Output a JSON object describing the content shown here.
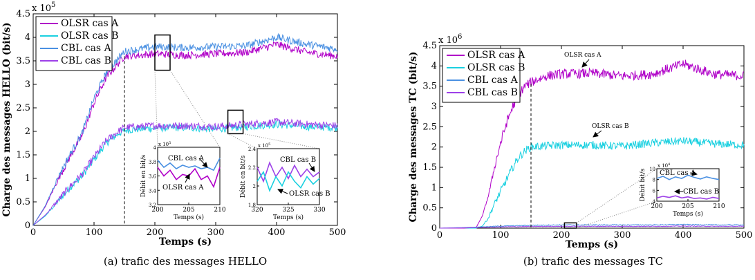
{
  "chart_data": [
    {
      "type": "line",
      "id": "a",
      "caption": "(a) trafic des messages HELLO",
      "xlabel": "Temps (s)",
      "ylabel": "Charge des messages HELLO (bit/s)",
      "multiplier": "x 10",
      "multiplier_exp": "5",
      "xlim": [
        0,
        500
      ],
      "ylim": [
        0,
        4.5
      ],
      "xticks": [
        "0",
        "100",
        "200",
        "300",
        "400",
        "500"
      ],
      "yticks": [
        "0",
        "0.5",
        "1",
        "1.5",
        "2",
        "2.5",
        "3",
        "3.5",
        "4",
        "4.5"
      ],
      "vline_x": 150,
      "legend_position": "top-left",
      "series": [
        {
          "name": "OLSR cas A",
          "color": "#b000c8",
          "x": [
            0,
            20,
            40,
            60,
            80,
            100,
            120,
            140,
            150,
            175,
            200,
            250,
            300,
            350,
            400,
            450,
            500
          ],
          "values": [
            0,
            0.4,
            0.95,
            1.45,
            1.9,
            2.6,
            3.15,
            3.45,
            3.6,
            3.62,
            3.65,
            3.62,
            3.65,
            3.68,
            3.85,
            3.68,
            3.6
          ]
        },
        {
          "name": "OLSR cas B",
          "color": "#1ad0e0",
          "x": [
            0,
            20,
            40,
            60,
            80,
            100,
            120,
            140,
            150,
            175,
            200,
            250,
            300,
            350,
            400,
            450,
            500
          ],
          "values": [
            0,
            0.2,
            0.5,
            0.8,
            1.05,
            1.4,
            1.75,
            1.95,
            2.02,
            2.05,
            2.07,
            2.08,
            2.05,
            2.1,
            2.15,
            2.1,
            2.08
          ]
        },
        {
          "name": "CBL cas A",
          "color": "#4a90e2",
          "x": [
            0,
            20,
            40,
            60,
            80,
            100,
            120,
            140,
            150,
            175,
            200,
            250,
            300,
            350,
            400,
            450,
            500
          ],
          "values": [
            0,
            0.42,
            1.0,
            1.5,
            1.95,
            2.7,
            3.25,
            3.55,
            3.7,
            3.75,
            3.8,
            3.78,
            3.8,
            3.82,
            4.0,
            3.85,
            3.75
          ]
        },
        {
          "name": "CBL cas B",
          "color": "#9d40e8",
          "x": [
            0,
            20,
            40,
            60,
            80,
            100,
            120,
            140,
            150,
            175,
            200,
            250,
            300,
            350,
            400,
            450,
            500
          ],
          "values": [
            0,
            0.22,
            0.52,
            0.82,
            1.08,
            1.45,
            1.8,
            2.0,
            2.08,
            2.1,
            2.12,
            2.12,
            2.1,
            2.15,
            2.2,
            2.15,
            2.12
          ]
        }
      ],
      "inset1": {
        "ylabel": "Débit en bit/s",
        "xlabel": "Temps (s)",
        "multiplier": "x 10",
        "multiplier_exp": "5",
        "xlim": [
          200,
          210
        ],
        "ylim": [
          3.2,
          4.0
        ],
        "xticks": [
          "200",
          "205",
          "210"
        ],
        "yticks": [
          "3.2",
          "3.4",
          "3.6",
          "3.8",
          "4"
        ],
        "label_cbl": "CBL cas A",
        "label_olsr": "OLSR cas A",
        "x": [
          200,
          201,
          202,
          203,
          204,
          205,
          206,
          207,
          208,
          209,
          210
        ],
        "olsr": [
          3.72,
          3.6,
          3.68,
          3.55,
          3.62,
          3.6,
          3.7,
          3.55,
          3.6,
          3.45,
          3.72
        ],
        "cbl": [
          3.82,
          3.72,
          3.78,
          3.7,
          3.75,
          3.72,
          3.74,
          3.7,
          3.72,
          3.68,
          3.85
        ]
      },
      "inset2": {
        "ylabel": "Débit en bit/s",
        "xlabel": "Temps (s)",
        "multiplier": "x 10",
        "multiplier_exp": "5",
        "xlim": [
          320,
          330
        ],
        "ylim": [
          1.8,
          2.4
        ],
        "xticks": [
          "320",
          "325",
          "330"
        ],
        "yticks": [
          "1.8",
          "2",
          "2.2",
          "2.4"
        ],
        "label_cbl": "CBL cas B",
        "label_olsr": "OLSR cas B",
        "x": [
          320,
          321,
          322,
          323,
          324,
          325,
          326,
          327,
          328,
          329,
          330
        ],
        "olsr": [
          2.05,
          2.15,
          1.95,
          2.1,
          2.0,
          2.15,
          2.05,
          1.98,
          2.1,
          2.02,
          2.08
        ],
        "cbl": [
          2.2,
          2.05,
          2.25,
          2.1,
          2.2,
          2.08,
          2.22,
          2.1,
          2.18,
          2.1,
          2.15
        ]
      }
    },
    {
      "type": "line",
      "id": "b",
      "caption": "(b) trafic des messages TC",
      "xlabel": "Temps (s)",
      "ylabel": "Charge des messages TC (bit/s)",
      "multiplier": "x 10",
      "multiplier_exp": "6",
      "xlim": [
        0,
        500
      ],
      "ylim": [
        0,
        4.5
      ],
      "xticks": [
        "0",
        "100",
        "200",
        "300",
        "400",
        "500"
      ],
      "yticks": [
        "0",
        "0.5",
        "1",
        "1.5",
        "2",
        "2.5",
        "3",
        "3.5",
        "4",
        "4.5"
      ],
      "vline_x": 150,
      "legend_position": "top-left",
      "annotation_a": "OLSR cas A",
      "annotation_b": "OLSR cas B",
      "series": [
        {
          "name": "OLSR cas A",
          "color": "#b000c8",
          "x": [
            0,
            40,
            60,
            70,
            80,
            90,
            100,
            110,
            120,
            130,
            140,
            150,
            175,
            200,
            250,
            300,
            350,
            400,
            450,
            500
          ],
          "values": [
            0,
            0,
            0.02,
            0.3,
            0.8,
            1.5,
            2.1,
            2.6,
            3.0,
            3.3,
            3.5,
            3.6,
            3.75,
            3.8,
            3.82,
            3.75,
            3.8,
            4.05,
            3.8,
            3.75
          ]
        },
        {
          "name": "OLSR cas B",
          "color": "#1ad0e0",
          "x": [
            0,
            40,
            60,
            70,
            80,
            90,
            100,
            110,
            120,
            130,
            140,
            150,
            175,
            200,
            250,
            300,
            350,
            400,
            450,
            500
          ],
          "values": [
            0,
            0,
            0.0,
            0.05,
            0.25,
            0.6,
            0.9,
            1.2,
            1.5,
            1.75,
            1.9,
            2.0,
            2.03,
            2.05,
            2.05,
            2.02,
            2.1,
            2.15,
            2.08,
            2.05
          ]
        },
        {
          "name": "CBL cas A",
          "color": "#4a90e2",
          "x": [
            0,
            50,
            100,
            150,
            200,
            250,
            300,
            350,
            400,
            450,
            500
          ],
          "values": [
            0,
            0.02,
            0.05,
            0.07,
            0.08,
            0.08,
            0.08,
            0.08,
            0.09,
            0.08,
            0.08
          ]
        },
        {
          "name": "CBL cas B",
          "color": "#9d40e8",
          "x": [
            0,
            50,
            100,
            150,
            200,
            250,
            300,
            350,
            400,
            450,
            500
          ],
          "values": [
            0,
            0.01,
            0.03,
            0.04,
            0.045,
            0.045,
            0.045,
            0.045,
            0.05,
            0.045,
            0.045
          ]
        }
      ],
      "inset": {
        "ylabel": "Débit bit/s",
        "xlabel": "Temps (s)",
        "multiplier": "x 10",
        "multiplier_exp": "4",
        "xlim": [
          200,
          210
        ],
        "ylim": [
          4,
          10
        ],
        "xticks": [
          "200",
          "205",
          "210"
        ],
        "yticks": [
          "4",
          "6",
          "8",
          "10"
        ],
        "label_a": "CBL cas A",
        "label_b": "CBL cas B",
        "x": [
          200,
          201,
          202,
          203,
          204,
          205,
          206,
          207,
          208,
          209,
          210
        ],
        "cbl_a": [
          8.2,
          8.6,
          8.0,
          8.5,
          8.2,
          8.8,
          8.4,
          8.1,
          8.5,
          8.2,
          8.0
        ],
        "cbl_b": [
          4.6,
          4.9,
          4.7,
          5.0,
          4.6,
          4.8,
          4.5,
          4.6,
          4.4,
          4.7,
          4.5
        ]
      }
    }
  ]
}
